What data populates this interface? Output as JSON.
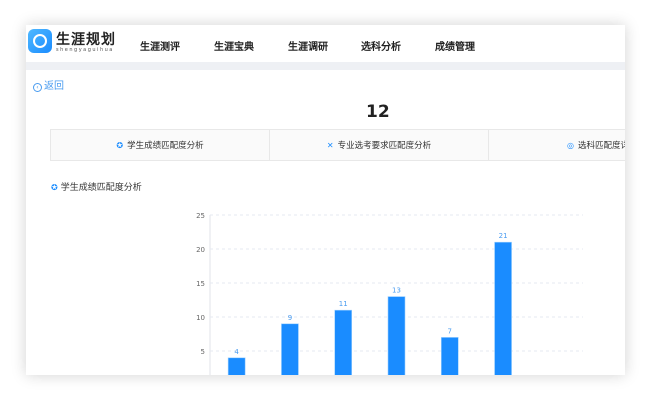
{
  "header": {
    "brand": "生涯规划",
    "brand_sub": "shengyaguihua",
    "nav": [
      "生涯测评",
      "生涯宝典",
      "生涯调研",
      "选科分析",
      "成绩管理"
    ]
  },
  "back_label": "返回",
  "title": "12",
  "tabs": [
    {
      "label": "学生成绩匹配度分析",
      "icon": "badge-icon"
    },
    {
      "label": "专业选考要求匹配度分析",
      "icon": "shuffle-icon"
    },
    {
      "label": "选科匹配度详",
      "icon": "globe-icon"
    }
  ],
  "section_title": "学生成绩匹配度分析",
  "chart_data": {
    "type": "bar",
    "values": [
      4,
      9,
      11,
      13,
      7,
      21
    ],
    "ylim": [
      0,
      25
    ],
    "yticks": [
      5,
      10,
      15,
      20,
      25
    ],
    "grid": true,
    "bar_color": "#1a8cff",
    "label_color": "#4a9cf0"
  }
}
